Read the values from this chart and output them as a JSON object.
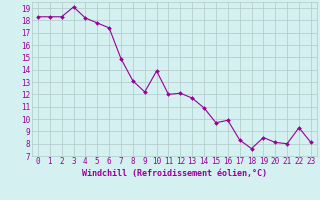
{
  "x": [
    0,
    1,
    2,
    3,
    4,
    5,
    6,
    7,
    8,
    9,
    10,
    11,
    12,
    13,
    14,
    15,
    16,
    17,
    18,
    19,
    20,
    21,
    22,
    23
  ],
  "y": [
    18.3,
    18.3,
    18.3,
    19.1,
    18.2,
    17.8,
    17.4,
    14.9,
    13.1,
    12.2,
    13.9,
    12.0,
    12.1,
    11.7,
    10.9,
    9.7,
    9.9,
    8.3,
    7.6,
    8.5,
    8.1,
    8.0,
    9.3,
    8.1
  ],
  "line_color": "#990099",
  "marker_color": "#990099",
  "bg_color": "#d4f0f0",
  "grid_color": "#b0c8c8",
  "tick_label_color": "#990099",
  "xlabel": "Windchill (Refroidissement éolien,°C)",
  "ylim": [
    7,
    19.5
  ],
  "xlim": [
    -0.5,
    23.5
  ],
  "yticks": [
    7,
    8,
    9,
    10,
    11,
    12,
    13,
    14,
    15,
    16,
    17,
    18,
    19
  ],
  "xticks": [
    0,
    1,
    2,
    3,
    4,
    5,
    6,
    7,
    8,
    9,
    10,
    11,
    12,
    13,
    14,
    15,
    16,
    17,
    18,
    19,
    20,
    21,
    22,
    23
  ],
  "font_size": 5.5,
  "xlabel_fontsize": 6.0,
  "line_width": 0.8,
  "marker_size": 2.0
}
